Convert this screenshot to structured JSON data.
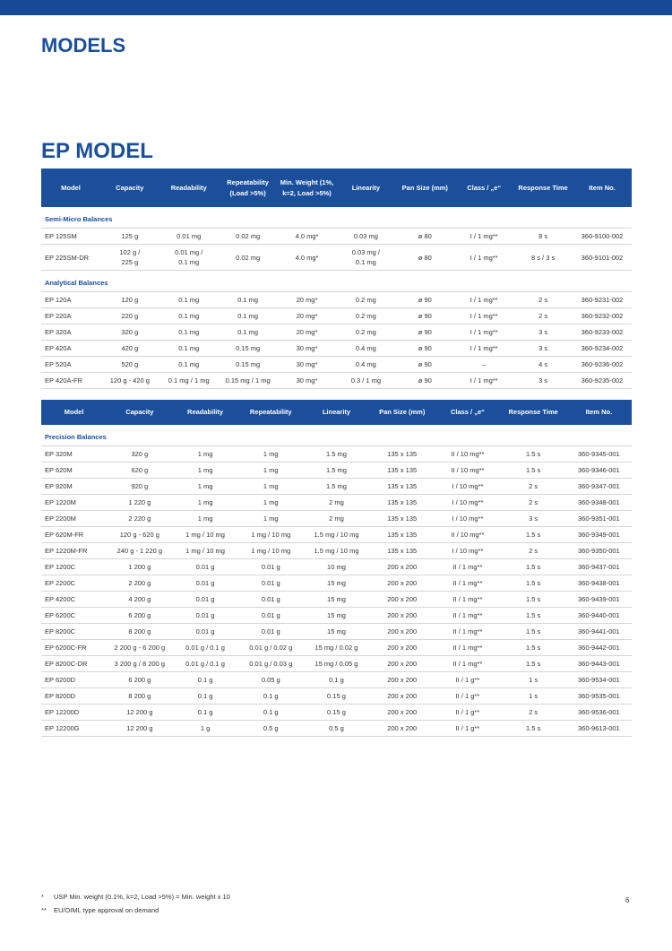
{
  "header": {
    "title": "MODELS"
  },
  "section_title": "EP MODEL",
  "table1": {
    "columns": [
      "Model",
      "Capacity",
      "Readability",
      "Repeatability (Load >5%)",
      "Min. Weight (1%, k=2, Load >5%)",
      "Linearity",
      "Pan Size (mm)",
      "Class / „e“",
      "Response Time",
      "Item No."
    ],
    "groups": [
      {
        "title": "Semi-Micro Balances",
        "rows": [
          [
            "EP 125SM",
            "125 g",
            "0.01 mg",
            "0.02 mg",
            "4.0 mg*",
            "0.03 mg",
            "ø 80",
            "I / 1 mg**",
            "8 s",
            "360-9100-002"
          ],
          [
            "EP 225SM-DR",
            "102 g /\n225 g",
            "0.01 mg /\n0.1 mg",
            "0.02 mg",
            "4.0 mg*",
            "0.03 mg /\n0.1 mg",
            "ø 80",
            "I / 1 mg**",
            "8 s / 3 s",
            "360-9101-002"
          ]
        ]
      },
      {
        "title": "Analytical Balances",
        "rows": [
          [
            "EP 120A",
            "120 g",
            "0.1 mg",
            "0.1 mg",
            "20 mg*",
            "0.2 mg",
            "ø 90",
            "I / 1 mg**",
            "2 s",
            "360-9231-002"
          ],
          [
            "EP 220A",
            "220 g",
            "0.1 mg",
            "0.1 mg",
            "20 mg*",
            "0.2 mg",
            "ø 90",
            "I / 1 mg**",
            "2 s",
            "360-9232-002"
          ],
          [
            "EP 320A",
            "320 g",
            "0.1 mg",
            "0.1 mg",
            "20 mg*",
            "0.2 mg",
            "ø 90",
            "I / 1 mg**",
            "3 s",
            "360-9233-002"
          ],
          [
            "EP 420A",
            "420 g",
            "0.1 mg",
            "0.15 mg",
            "30 mg*",
            "0.4 mg",
            "ø 90",
            "I / 1 mg**",
            "3 s",
            "360-9234-002"
          ],
          [
            "EP 520A",
            "520 g",
            "0.1 mg",
            "0.15 mg",
            "30 mg*",
            "0.4 mg",
            "ø 90",
            "–",
            "4 s",
            "360-9236-002"
          ],
          [
            "EP 420A-FR",
            "120 g - 420 g",
            "0.1 mg / 1 mg",
            "0.15 mg / 1 mg",
            "30 mg*",
            "0.3 / 1 mg",
            "ø 90",
            "I / 1 mg**",
            "3 s",
            "360-9235-002"
          ]
        ]
      }
    ]
  },
  "table2": {
    "columns": [
      "Model",
      "Capacity",
      "Readability",
      "Repeatability",
      "Linearity",
      "Pan Size (mm)",
      "Class / „e“",
      "Response Time",
      "Item No."
    ],
    "groups": [
      {
        "title": "Precision Balances",
        "rows": [
          [
            "EP 320M",
            "320 g",
            "1 mg",
            "1 mg",
            "1.5 mg",
            "135 x 135",
            "II / 10 mg**",
            "1.5 s",
            "360-9345-001"
          ],
          [
            "EP 620M",
            "620 g",
            "1 mg",
            "1 mg",
            "1.5 mg",
            "135 x 135",
            "II / 10 mg**",
            "1.5 s",
            "360-9346-001"
          ],
          [
            "EP 920M",
            "920 g",
            "1 mg",
            "1 mg",
            "1.5 mg",
            "135 x 135",
            "I / 10 mg**",
            "2 s",
            "360-9347-001"
          ],
          [
            "EP 1220M",
            "1 220 g",
            "1 mg",
            "1 mg",
            "2 mg",
            "135 x 135",
            "I / 10 mg**",
            "2 s",
            "360-9348-001"
          ],
          [
            "EP 2200M",
            "2 220 g",
            "1 mg",
            "1 mg",
            "2 mg",
            "135 x 135",
            "I / 10 mg**",
            "3 s",
            "360-9351-001"
          ],
          [
            "EP 620M-FR",
            "120 g - 620 g",
            "1 mg / 10 mg",
            "1 mg / 10 mg",
            "1.5 mg / 10 mg",
            "135 x 135",
            "II / 10 mg**",
            "1.5 s",
            "360-9349-001"
          ],
          [
            "EP 1220M-FR",
            "240 g - 1 220 g",
            "1 mg / 10 mg",
            "1 mg / 10 mg",
            "1.5 mg / 10 mg",
            "135 x 135",
            "I / 10 mg**",
            "2 s",
            "360-9350-001"
          ],
          [
            "EP 1200C",
            "1 200 g",
            "0.01 g",
            "0.01 g",
            "10 mg",
            "200 x 200",
            "II / 1 mg**",
            "1.5 s",
            "360-9437-001"
          ],
          [
            "EP 2200C",
            "2 200 g",
            "0.01 g",
            "0.01 g",
            "15 mg",
            "200 x 200",
            "II / 1 mg**",
            "1.5 s",
            "360-9438-001"
          ],
          [
            "EP 4200C",
            "4 200 g",
            "0.01 g",
            "0.01 g",
            "15 mg",
            "200 x 200",
            "II / 1 mg**",
            "1.5 s",
            "360-9439-001"
          ],
          [
            "EP 6200C",
            "6 200 g",
            "0.01 g",
            "0.01 g",
            "15 mg",
            "200 x 200",
            "II / 1 mg**",
            "1.5 s",
            "360-9440-001"
          ],
          [
            "EP 8200C",
            "8 200 g",
            "0.01 g",
            "0.01 g",
            "15 mg",
            "200 x 200",
            "II / 1 mg**",
            "1.5 s",
            "360-9441-001"
          ],
          [
            "EP 6200C-FR",
            "2 200 g - 6 200 g",
            "0.01 g / 0.1 g",
            "0.01 g / 0.02 g",
            "15 mg / 0.02 g",
            "200 x 200",
            "II / 1 mg**",
            "1.5 s",
            "360-9442-001"
          ],
          [
            "EP 8200C-DR",
            "3 200 g / 8 200 g",
            "0.01 g / 0.1 g",
            "0.01 g / 0.03 g",
            "15 mg / 0.05 g",
            "200 x 200",
            "II / 1 mg**",
            "1.5 s",
            "360-9443-001"
          ],
          [
            "EP 6200D",
            "6 200 g",
            "0.1 g",
            "0.05 g",
            "0.1 g",
            "200 x 200",
            "II / 1 g**",
            "1 s",
            "360-9534-001"
          ],
          [
            "EP 8200D",
            "8 200 g",
            "0.1 g",
            "0.1 g",
            "0.15 g",
            "200 x 200",
            "II / 1 g**",
            "1 s",
            "360-9535-001"
          ],
          [
            "EP 12200D",
            "12 200 g",
            "0.1 g",
            "0.1 g",
            "0.15 g",
            "200 x 200",
            "II / 1 g**",
            "2 s",
            "360-9536-001"
          ],
          [
            "EP 12200G",
            "12 200 g",
            "1 g",
            "0.5 g",
            "0.5 g",
            "200 x 200",
            "II / 1 g**",
            "1.5 s",
            "360-9613-001"
          ]
        ]
      }
    ]
  },
  "footnotes": [
    {
      "mark": "*",
      "text": "USP Min. weight (0.1%, k=2, Load >5%) = Min. weight x 10"
    },
    {
      "mark": "**",
      "text": "EU/OIML type approval on demand"
    }
  ],
  "page_number": "6"
}
